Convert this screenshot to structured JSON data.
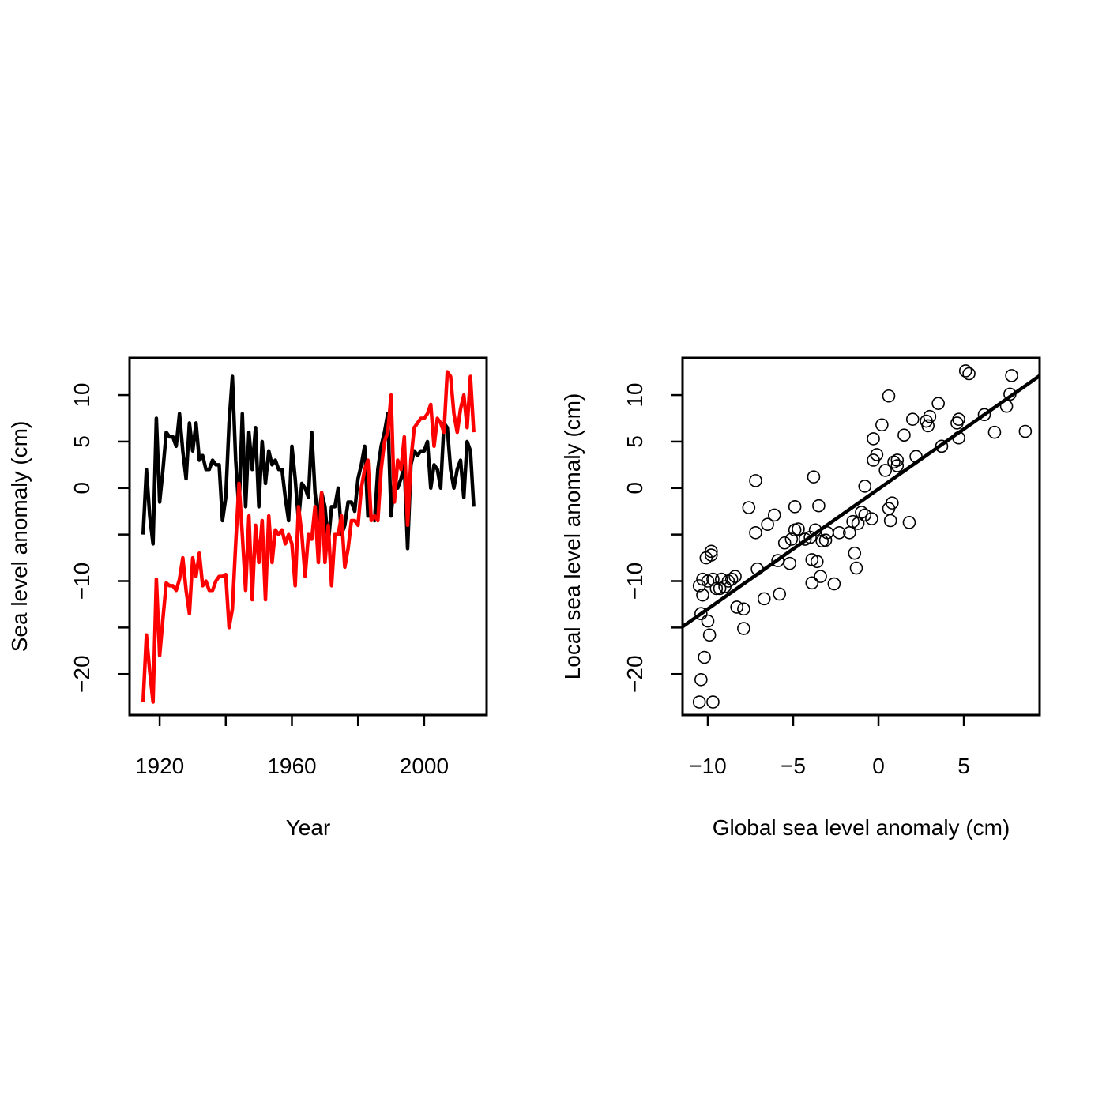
{
  "chart_data": [
    {
      "type": "line",
      "xlabel": "Year",
      "ylabel": "Sea level anomaly (cm)",
      "xlim": [
        1910.9,
        2018.9
      ],
      "ylim": [
        -24.4,
        14.0
      ],
      "xticks": [
        1920,
        {
          "value": 1940,
          "label": null
        },
        1960,
        {
          "value": 1980,
          "label": null
        },
        2000
      ],
      "yticks": [
        {
          "value": -20,
          "label": "−20"
        },
        {
          "value": -15,
          "label": null
        },
        {
          "value": -10,
          "label": "−10"
        },
        {
          "value": -5,
          "label": null
        },
        0,
        5,
        10
      ],
      "x": [
        1915,
        1916,
        1917,
        1918,
        1919,
        1920,
        1921,
        1922,
        1923,
        1924,
        1925,
        1926,
        1927,
        1928,
        1929,
        1930,
        1931,
        1932,
        1933,
        1934,
        1935,
        1936,
        1937,
        1938,
        1939,
        1940,
        1941,
        1942,
        1943,
        1944,
        1945,
        1946,
        1947,
        1948,
        1949,
        1950,
        1951,
        1952,
        1953,
        1954,
        1955,
        1956,
        1957,
        1958,
        1959,
        1960,
        1961,
        1962,
        1963,
        1964,
        1965,
        1966,
        1967,
        1968,
        1969,
        1970,
        1971,
        1972,
        1973,
        1974,
        1975,
        1976,
        1977,
        1978,
        1979,
        1980,
        1981,
        1982,
        1983,
        1984,
        1985,
        1986,
        1987,
        1988,
        1989,
        1990,
        1991,
        1992,
        1993,
        1994,
        1995,
        1996,
        1997,
        1998,
        1999,
        2000,
        2001,
        2002,
        2003,
        2004,
        2005,
        2006,
        2007,
        2008,
        2009,
        2010,
        2011,
        2012,
        2013,
        2014,
        2015
      ],
      "series": [
        {
          "color": "#000000",
          "values": [
            -5,
            2,
            -3,
            -6,
            7.5,
            -1.5,
            2,
            6,
            5.5,
            5.5,
            4.5,
            8,
            4,
            1,
            7,
            4,
            7,
            3,
            3.5,
            2,
            2,
            3,
            2.5,
            2.5,
            -3.5,
            -1,
            7,
            12,
            3,
            -2.5,
            8,
            -2,
            6,
            2,
            6.5,
            -2,
            5,
            0.5,
            4,
            2.5,
            3,
            2,
            2,
            -1,
            -3.5,
            4.5,
            1,
            -3.5,
            0.5,
            0,
            -1,
            6,
            -0.5,
            -3.5,
            -0.5,
            -2,
            -6,
            -2,
            -2,
            0,
            -5,
            -4,
            -1.5,
            -1.5,
            -2.5,
            1,
            2.5,
            4.5,
            -3,
            -3,
            -3.5,
            2,
            4.5,
            6,
            8,
            -3,
            1,
            0,
            1,
            2.5,
            -6.5,
            2.5,
            4,
            3.5,
            4,
            4,
            5,
            0,
            2.5,
            2,
            0,
            7,
            6.5,
            2,
            0,
            2,
            3,
            -1,
            5,
            4,
            -2
          ]
        },
        {
          "color": "#ff0000",
          "values": [
            -23,
            -15.8,
            -19.7,
            -23,
            -9.8,
            -18,
            -14,
            -10.2,
            -10.5,
            -10.5,
            -11,
            -9.8,
            -7.5,
            -11,
            -13.5,
            -7.5,
            -9.5,
            -7,
            -10.5,
            -10,
            -11,
            -11,
            -10,
            -9.5,
            -9.5,
            -9.3,
            -15,
            -13,
            -6,
            0.5,
            -5,
            -11,
            -3,
            -12,
            -4,
            -8,
            -3.5,
            -12,
            -3,
            -8,
            -4.5,
            -5,
            -4.5,
            -6,
            -5,
            -6,
            -10.5,
            -2,
            -5,
            -9.5,
            -5,
            -5.5,
            -2,
            -8,
            -0.5,
            -8,
            -4,
            -10.5,
            -5,
            -5,
            -3,
            -8.5,
            -6.5,
            -3.5,
            -3.5,
            -4,
            0,
            2,
            3,
            -3.5,
            -3,
            -3.5,
            2,
            5,
            6,
            10,
            -1.5,
            3,
            2,
            5.5,
            -4,
            3,
            6.5,
            7,
            7.5,
            7.5,
            8,
            9,
            4.5,
            7.5,
            7,
            6,
            12.5,
            12,
            8,
            6,
            8.5,
            10,
            6.5,
            12,
            6
          ]
        }
      ]
    },
    {
      "type": "scatter",
      "xlabel": "Global sea level anomaly (cm)",
      "ylabel": "Local sea level anomaly (cm)",
      "xlim": [
        -11.48,
        9.44
      ],
      "ylim": [
        -24.4,
        14.0
      ],
      "xticks": [
        {
          "value": -10,
          "label": "−10"
        },
        {
          "value": -5,
          "label": "−5"
        },
        0,
        5
      ],
      "yticks": [
        {
          "value": -20,
          "label": "−20"
        },
        {
          "value": -15,
          "label": null
        },
        {
          "value": -10,
          "label": "−10"
        },
        {
          "value": -5,
          "label": null
        },
        0,
        5,
        10
      ],
      "color": "#000000",
      "x": [
        -10.5,
        -10.3,
        -10.3,
        -10.1,
        -10,
        -9.8,
        -9.8,
        -9.7,
        -9.5,
        -9.3,
        -9.2,
        -9,
        -8.8,
        -8.6,
        -8.4,
        -10.4,
        -10,
        -9.9,
        -10.2,
        -10.4,
        -10.5,
        -9.7,
        -8.3,
        -7.9,
        -7.9,
        -7.6,
        -7.2,
        -7.2,
        -7.1,
        -6.7,
        -6.5,
        -6.1,
        -5.9,
        -5.8,
        -5.5,
        -5.2,
        -5.1,
        -4.9,
        -4.9,
        -4.7,
        -4.3,
        -4,
        -3.9,
        -3.9,
        -3.8,
        -3.7,
        -3.6,
        -3.5,
        -3.4,
        -3.3,
        -3.1,
        -3,
        -2.6,
        -2.3,
        -1.7,
        -1.5,
        -1.4,
        -1.3,
        -1.2,
        -1,
        -0.8,
        -0.8,
        -0.4,
        -0.3,
        -0.3,
        -0.1,
        0.2,
        0.4,
        0.6,
        0.6,
        0.7,
        0.8,
        0.9,
        1.1,
        1.1,
        1.5,
        1.8,
        2,
        2.2,
        2.8,
        2.9,
        3,
        3.5,
        3.7,
        4.6,
        4.7,
        4.7,
        5.1,
        5.3,
        6.2,
        6.8,
        7.5,
        7.7,
        7.8,
        8.6
      ],
      "y": [
        -10.5,
        -11.5,
        -9.8,
        -7.5,
        -10,
        -6.8,
        -7.2,
        -9.8,
        -10.8,
        -10.8,
        -9.8,
        -10.6,
        -10,
        -9.8,
        -9.5,
        -13.5,
        -14.3,
        -15.8,
        -18.2,
        -20.6,
        -23,
        -23,
        -12.8,
        -13,
        -15.1,
        -2.1,
        0.8,
        -4.8,
        -8.7,
        -11.9,
        -3.9,
        -2.9,
        -7.8,
        -11.4,
        -5.9,
        -8.1,
        -5.5,
        -4.5,
        -2,
        -4.4,
        -5.5,
        -5.3,
        -7.7,
        -10.2,
        1.2,
        -4.5,
        -7.9,
        -1.9,
        -9.5,
        -5.7,
        -5.6,
        -4.8,
        -10.3,
        -4.8,
        -4.8,
        -3.6,
        -7,
        -8.6,
        -3.8,
        -2.6,
        0.2,
        -2.9,
        -3.3,
        3,
        5.3,
        3.6,
        6.8,
        1.9,
        9.9,
        -2.2,
        -3.5,
        -1.6,
        2.8,
        3,
        2.4,
        5.7,
        -3.7,
        7.4,
        3.4,
        7.2,
        6.7,
        7.7,
        9.1,
        4.5,
        7,
        5.4,
        7.4,
        12.6,
        12.3,
        7.9,
        6,
        8.8,
        10.1,
        12.1,
        6.1
      ],
      "fit": {
        "intercept": -0.1,
        "slope": 1.29
      }
    }
  ]
}
